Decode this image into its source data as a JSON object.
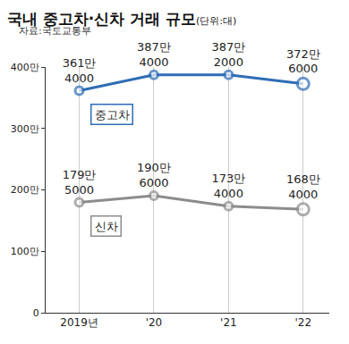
{
  "chart_data": {
    "type": "line",
    "title": "국내 중고차·신차 거래 규모",
    "subtitle": "(단위:대)",
    "annotations": [
      "자료:국토교통부"
    ],
    "categories": [
      "2019년",
      "'20",
      "'21",
      "'22"
    ],
    "series": [
      {
        "name": "중고차",
        "color": "#2f6db5",
        "marker": "circle",
        "values": [
          3614000,
          3874000,
          3872000,
          3726000
        ],
        "value_labels": [
          "361만\n4000",
          "387만\n4000",
          "387만\n2000",
          "372만\n6000"
        ]
      },
      {
        "name": "신차",
        "color": "#8c8c8c",
        "marker": "circle",
        "values": [
          1795000,
          1906000,
          1734000,
          1684000
        ],
        "value_labels": [
          "179만\n5000",
          "190만\n6000",
          "173만\n4000",
          "168만\n4000"
        ]
      }
    ],
    "ylim": [
      0,
      4000000
    ],
    "yticks": [
      0,
      {
        "value": 1000000,
        "label": "100만"
      },
      {
        "value": 2000000,
        "label": "200만"
      },
      {
        "value": 3000000,
        "label": "300만"
      },
      {
        "value": 4000000,
        "label": "400만"
      }
    ],
    "grid": true,
    "data_labels": true
  }
}
